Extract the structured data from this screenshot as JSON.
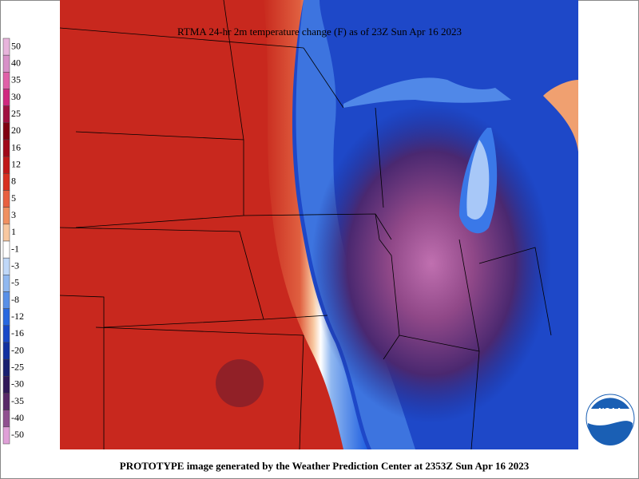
{
  "header": {
    "title": "RTMA 24-hr 2m temperature change (F) as of 23Z Sun Apr 16 2023"
  },
  "legend": {
    "items": [
      {
        "label": "50",
        "color": "#e8b4dc"
      },
      {
        "label": "40",
        "color": "#d890c8"
      },
      {
        "label": "35",
        "color": "#e060a8"
      },
      {
        "label": "30",
        "color": "#d02880"
      },
      {
        "label": "25",
        "color": "#a01040"
      },
      {
        "label": "20",
        "color": "#800010"
      },
      {
        "label": "16",
        "color": "#a00818"
      },
      {
        "label": "12",
        "color": "#c01818"
      },
      {
        "label": "8",
        "color": "#d83020"
      },
      {
        "label": "5",
        "color": "#e86040"
      },
      {
        "label": "3",
        "color": "#f09060"
      },
      {
        "label": "1",
        "color": "#f8c8a0"
      },
      {
        "label": "-1",
        "color": "#ffffff"
      },
      {
        "label": "-3",
        "color": "#c0d8f8"
      },
      {
        "label": "-5",
        "color": "#90b8f0"
      },
      {
        "label": "-8",
        "color": "#5890e8"
      },
      {
        "label": "-12",
        "color": "#2868e0"
      },
      {
        "label": "-16",
        "color": "#1848c8"
      },
      {
        "label": "-20",
        "color": "#1030a0"
      },
      {
        "label": "-25",
        "color": "#182070"
      },
      {
        "label": "-30",
        "color": "#301858"
      },
      {
        "label": "-35",
        "color": "#582868"
      },
      {
        "label": "-40",
        "color": "#905090"
      },
      {
        "label": "-50",
        "color": "#e0a0d8"
      }
    ]
  },
  "logo": {
    "text": "NOAA"
  },
  "footer": {
    "text": "PROTOTYPE image generated by the Weather Prediction Center at 2353Z Sun Apr 16 2023"
  }
}
